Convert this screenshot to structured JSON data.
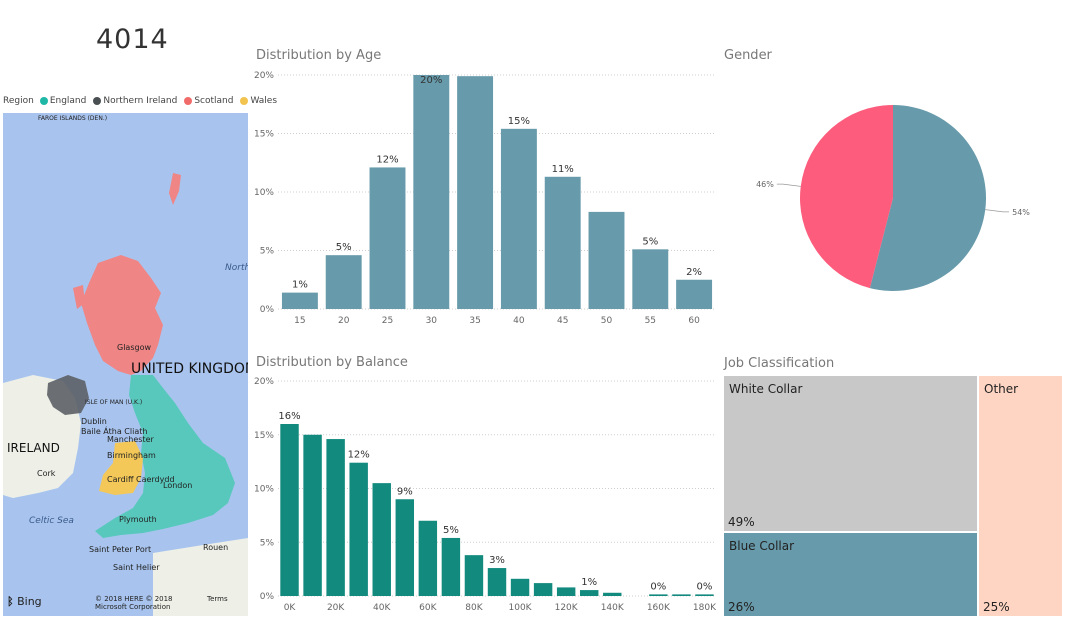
{
  "kpi": {
    "value": "4014"
  },
  "map": {
    "legend_title": "Region",
    "legend": [
      {
        "name": "England",
        "color": "#1fb8a6"
      },
      {
        "name": "Northern Ireland",
        "color": "#4a4f52"
      },
      {
        "name": "Scotland",
        "color": "#f26b6b"
      },
      {
        "name": "Wales",
        "color": "#f2c34e"
      }
    ],
    "labels": {
      "faroe": "FAROE ISLANDS (DEN.)",
      "uk": "UNITED KINGDOM",
      "ireland": "IRELAND",
      "north": "North",
      "celtic": "Celtic Sea",
      "glasgow": "Glasgow",
      "isle_of_man": "ISLE OF MAN (U.K.)",
      "dublin": "Dublin",
      "baile": "Baile Átha Cliath",
      "manchester": "Manchester",
      "birmingham": "Birmingham",
      "cardiff": "Cardiff Caerdydd",
      "london": "London",
      "cork": "Cork",
      "plymouth": "Plymouth",
      "rouen": "Rouen",
      "saint_peter": "Saint Peter Port",
      "saint_helier": "Saint Helier",
      "bing": "Bing",
      "copyright": "© 2018 HERE © 2018 Microsoft Corporation",
      "terms": "Terms"
    }
  },
  "chart_data": [
    {
      "type": "bar",
      "title": "Distribution by Age",
      "categories": [
        "15",
        "20",
        "25",
        "30",
        "35",
        "40",
        "45",
        "50",
        "55",
        "60"
      ],
      "values": [
        1.4,
        4.6,
        12.1,
        20.2,
        19.9,
        15.4,
        11.3,
        8.3,
        5.1,
        2.5
      ],
      "data_labels": [
        "1%",
        "5%",
        "12%",
        "20%",
        "",
        "15%",
        "11%",
        "",
        "5%",
        "2%"
      ],
      "yticks": [
        "0%",
        "5%",
        "10%",
        "15%",
        "20%"
      ],
      "ylim": [
        0,
        20
      ],
      "color": "#679aaa"
    },
    {
      "type": "pie",
      "title": "Gender",
      "slices": [
        {
          "label": "54%",
          "value": 54,
          "color": "#679aaa"
        },
        {
          "label": "46%",
          "value": 46,
          "color": "#fd5c7c"
        }
      ]
    },
    {
      "type": "bar",
      "title": "Distribution by Balance",
      "x": [
        0,
        10,
        20,
        30,
        40,
        50,
        60,
        70,
        80,
        90,
        100,
        110,
        120,
        130,
        140,
        150,
        160,
        170,
        180
      ],
      "values": [
        16.0,
        15.0,
        14.6,
        12.4,
        10.5,
        9.0,
        7.0,
        5.4,
        3.8,
        2.6,
        1.6,
        1.2,
        0.8,
        0.55,
        0.3,
        0.0,
        0.15,
        0.15,
        0.15
      ],
      "data_labels": [
        "16%",
        "",
        "",
        "12%",
        "",
        "9%",
        "",
        "5%",
        "",
        "3%",
        "",
        "",
        "",
        "1%",
        "",
        "",
        "0%",
        "",
        "0%"
      ],
      "xticks": [
        "0K",
        "20K",
        "40K",
        "60K",
        "80K",
        "100K",
        "120K",
        "140K",
        "160K",
        "180K"
      ],
      "yticks": [
        "0%",
        "5%",
        "10%",
        "15%",
        "20%"
      ],
      "ylim": [
        0,
        20
      ],
      "color": "#138a7e"
    },
    {
      "type": "treemap",
      "title": "Job Classification",
      "items": [
        {
          "label": "White Collar",
          "value": 49,
          "pct": "49%",
          "color": "#c8c8c8"
        },
        {
          "label": "Blue Collar",
          "value": 26,
          "pct": "26%",
          "color": "#679aaa"
        },
        {
          "label": "Other",
          "value": 25,
          "pct": "25%",
          "color": "#fed5c3"
        }
      ]
    }
  ]
}
